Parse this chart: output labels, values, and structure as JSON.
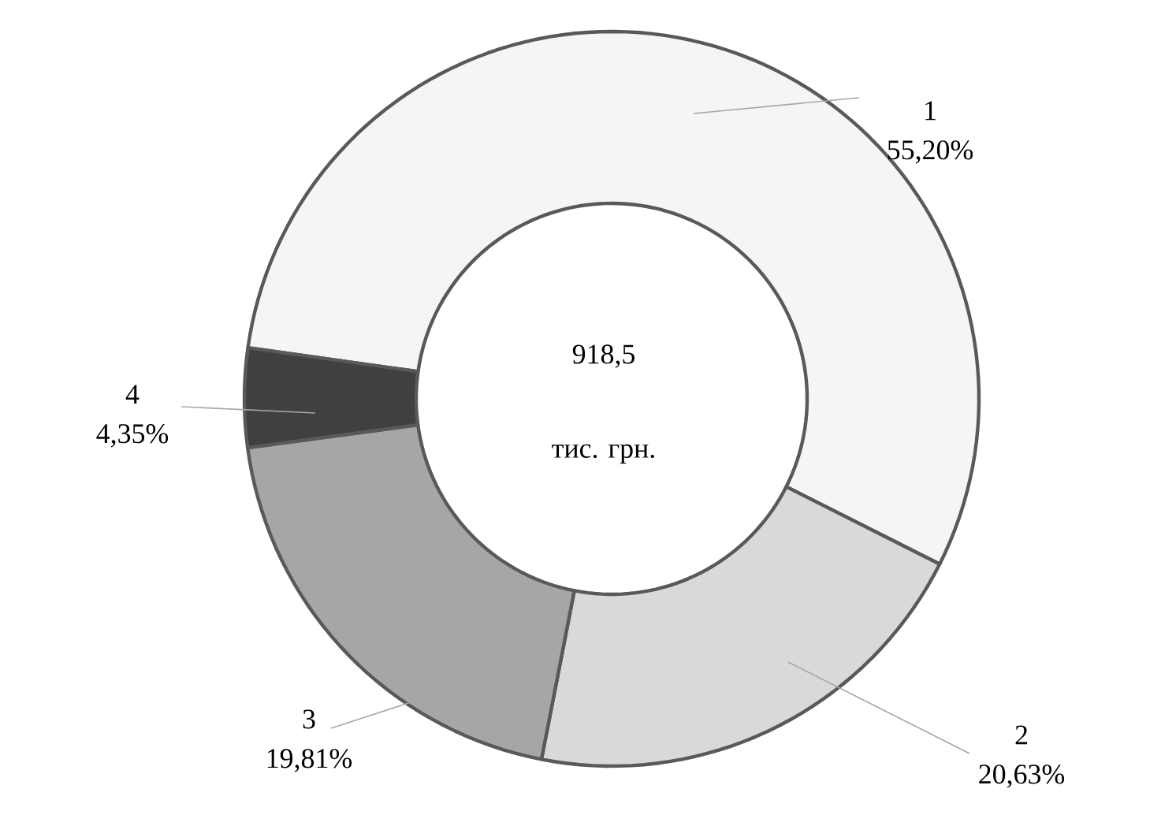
{
  "chart_data": {
    "type": "donut",
    "categories": [
      "1",
      "2",
      "3",
      "4"
    ],
    "values": [
      55.2,
      20.63,
      19.81,
      4.35
    ],
    "value_labels": [
      "55,20%",
      "20,63%",
      "19,81%",
      "4,35%"
    ],
    "colors": [
      "#f5f5f5",
      "#d9d9d9",
      "#a6a6a6",
      "#404040"
    ],
    "annotations": [
      "918,5",
      "тис. грн."
    ]
  }
}
